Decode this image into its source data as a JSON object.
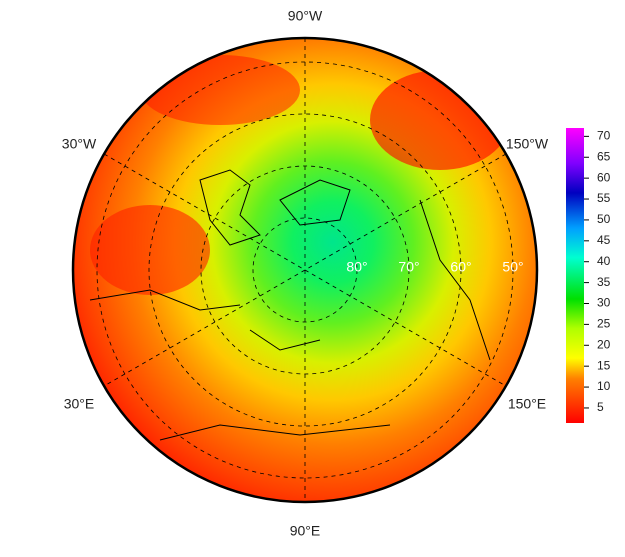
{
  "map": {
    "meridian_labels": [
      "90°W",
      "30°W",
      "150°W",
      "30°E",
      "150°E",
      "90°E"
    ],
    "latitude_labels": [
      {
        "value": 80,
        "label": "80°"
      },
      {
        "value": 70,
        "label": "70°"
      },
      {
        "value": 60,
        "label": "60°"
      },
      {
        "value": 50,
        "label": "50°"
      }
    ]
  },
  "colorbar": {
    "lim": [
      1.4,
      72
    ],
    "ticks": [
      5,
      10,
      15,
      20,
      25,
      30,
      35,
      40,
      45,
      50,
      55,
      60,
      65,
      70
    ]
  }
}
